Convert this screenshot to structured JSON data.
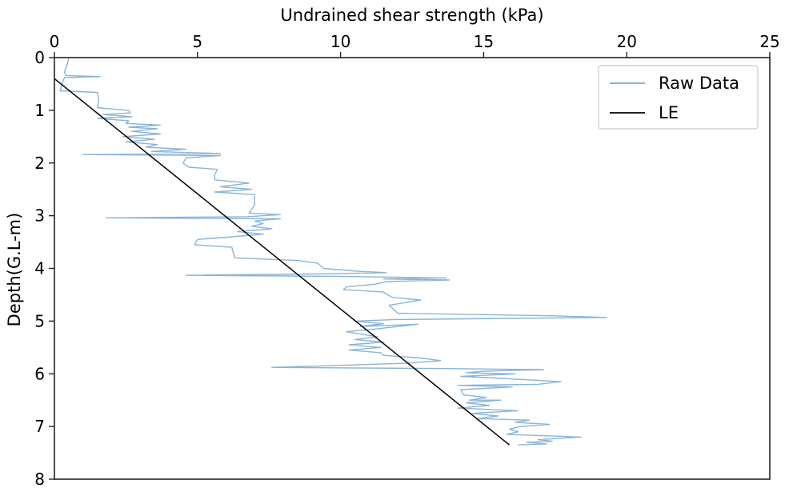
{
  "chart_data": {
    "type": "line",
    "xlabel": "Undrained shear strength (kPa)",
    "ylabel": "Depth(G.L-m)",
    "xlim": [
      0,
      25
    ],
    "ylim": [
      0,
      8
    ],
    "y_inverted": true,
    "x_axis_position": "top",
    "x_ticks": [
      "0",
      "5",
      "10",
      "15",
      "20",
      "25"
    ],
    "y_ticks": [
      "0",
      "1",
      "2",
      "3",
      "4",
      "5",
      "6",
      "7",
      "8"
    ],
    "grid": false,
    "legend_position": "top-right",
    "series": [
      {
        "name": "Raw Data",
        "color": "#8ab4d6",
        "points": [
          [
            0.5,
            0.02
          ],
          [
            0.45,
            0.12
          ],
          [
            0.4,
            0.2
          ],
          [
            0.35,
            0.28
          ],
          [
            0.4,
            0.34
          ],
          [
            1.6,
            0.36
          ],
          [
            0.35,
            0.38
          ],
          [
            0.3,
            0.45
          ],
          [
            0.25,
            0.55
          ],
          [
            0.2,
            0.63
          ],
          [
            1.5,
            0.66
          ],
          [
            1.55,
            0.8
          ],
          [
            1.5,
            0.95
          ],
          [
            2.6,
            1.0
          ],
          [
            2.65,
            1.05
          ],
          [
            1.7,
            1.08
          ],
          [
            2.7,
            1.12
          ],
          [
            1.5,
            1.15
          ],
          [
            2.6,
            1.2
          ],
          [
            2.5,
            1.25
          ],
          [
            3.7,
            1.28
          ],
          [
            2.6,
            1.32
          ],
          [
            3.6,
            1.35
          ],
          [
            2.7,
            1.4
          ],
          [
            3.7,
            1.45
          ],
          [
            2.4,
            1.5
          ],
          [
            3.5,
            1.55
          ],
          [
            2.5,
            1.6
          ],
          [
            3.6,
            1.65
          ],
          [
            3.2,
            1.7
          ],
          [
            4.6,
            1.74
          ],
          [
            3.4,
            1.78
          ],
          [
            5.8,
            1.82
          ],
          [
            1.0,
            1.84
          ],
          [
            5.8,
            1.86
          ],
          [
            4.6,
            1.9
          ],
          [
            4.5,
            2.0
          ],
          [
            4.7,
            2.08
          ],
          [
            5.7,
            2.12
          ],
          [
            5.6,
            2.22
          ],
          [
            5.6,
            2.32
          ],
          [
            6.8,
            2.38
          ],
          [
            5.8,
            2.45
          ],
          [
            6.9,
            2.5
          ],
          [
            5.6,
            2.55
          ],
          [
            7.0,
            2.6
          ],
          [
            7.0,
            2.8
          ],
          [
            6.8,
            2.95
          ],
          [
            7.9,
            2.98
          ],
          [
            6.7,
            3.02
          ],
          [
            1.8,
            3.04
          ],
          [
            7.9,
            3.06
          ],
          [
            7.0,
            3.1
          ],
          [
            7.3,
            3.15
          ],
          [
            6.9,
            3.2
          ],
          [
            7.6,
            3.25
          ],
          [
            6.4,
            3.3
          ],
          [
            7.3,
            3.35
          ],
          [
            6.2,
            3.4
          ],
          [
            5.0,
            3.45
          ],
          [
            4.9,
            3.55
          ],
          [
            6.2,
            3.6
          ],
          [
            6.3,
            3.8
          ],
          [
            8.5,
            3.85
          ],
          [
            9.2,
            3.9
          ],
          [
            9.4,
            4.0
          ],
          [
            10.5,
            4.05
          ],
          [
            11.6,
            4.08
          ],
          [
            9.8,
            4.1
          ],
          [
            4.6,
            4.13
          ],
          [
            9.9,
            4.15
          ],
          [
            13.7,
            4.18
          ],
          [
            11.5,
            4.2
          ],
          [
            13.8,
            4.22
          ],
          [
            11.6,
            4.25
          ],
          [
            11.2,
            4.3
          ],
          [
            10.2,
            4.35
          ],
          [
            10.1,
            4.4
          ],
          [
            11.5,
            4.45
          ],
          [
            11.8,
            4.55
          ],
          [
            12.8,
            4.6
          ],
          [
            11.7,
            4.7
          ],
          [
            12.0,
            4.85
          ],
          [
            17.5,
            4.9
          ],
          [
            19.3,
            4.93
          ],
          [
            11.9,
            4.97
          ],
          [
            10.5,
            5.0
          ],
          [
            11.5,
            5.05
          ],
          [
            10.7,
            5.1
          ],
          [
            12.7,
            5.06
          ],
          [
            11.2,
            5.15
          ],
          [
            10.2,
            5.2
          ],
          [
            11.3,
            5.3
          ],
          [
            10.5,
            5.35
          ],
          [
            11.5,
            5.4
          ],
          [
            10.3,
            5.45
          ],
          [
            11.4,
            5.5
          ],
          [
            10.3,
            5.55
          ],
          [
            11.4,
            5.6
          ],
          [
            11.5,
            5.65
          ],
          [
            12.8,
            5.7
          ],
          [
            13.5,
            5.75
          ],
          [
            12.3,
            5.8
          ],
          [
            7.6,
            5.88
          ],
          [
            13.7,
            5.9
          ],
          [
            17.1,
            5.92
          ],
          [
            15.0,
            5.95
          ],
          [
            14.4,
            5.98
          ],
          [
            16.1,
            6.0
          ],
          [
            14.2,
            6.05
          ],
          [
            15.4,
            6.08
          ],
          [
            17.7,
            6.15
          ],
          [
            16.9,
            6.2
          ],
          [
            14.1,
            6.22
          ],
          [
            16.0,
            6.25
          ],
          [
            14.2,
            6.3
          ],
          [
            14.3,
            6.4
          ],
          [
            15.1,
            6.45
          ],
          [
            14.5,
            6.5
          ],
          [
            15.6,
            6.5
          ],
          [
            14.4,
            6.55
          ],
          [
            15.2,
            6.6
          ],
          [
            14.1,
            6.65
          ],
          [
            16.2,
            6.7
          ],
          [
            14.6,
            6.75
          ],
          [
            15.5,
            6.8
          ],
          [
            14.8,
            6.85
          ],
          [
            16.6,
            6.88
          ],
          [
            16.1,
            6.92
          ],
          [
            17.3,
            6.96
          ],
          [
            16.3,
            7.0
          ],
          [
            15.9,
            7.05
          ],
          [
            16.2,
            7.1
          ],
          [
            15.8,
            7.15
          ],
          [
            18.4,
            7.2
          ],
          [
            16.9,
            7.25
          ],
          [
            17.4,
            7.28
          ],
          [
            16.5,
            7.3
          ],
          [
            17.2,
            7.33
          ],
          [
            16.2,
            7.35
          ]
        ]
      },
      {
        "name": "LE",
        "color": "#000000",
        "points": [
          [
            0.0,
            0.4
          ],
          [
            15.9,
            7.35
          ]
        ]
      }
    ]
  }
}
